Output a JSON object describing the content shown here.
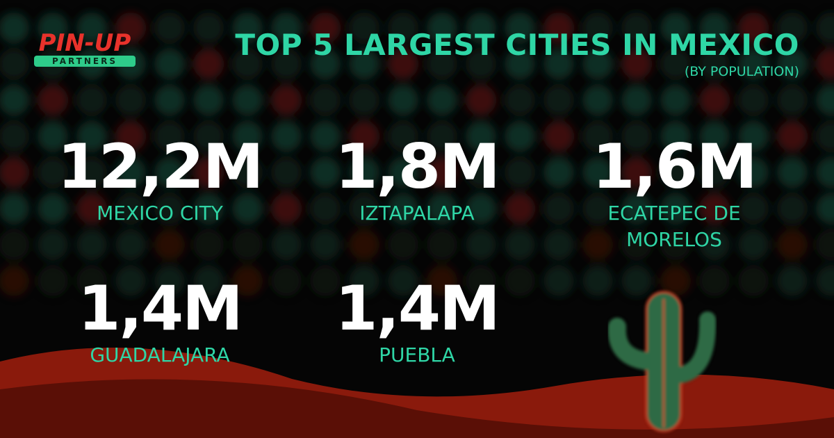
{
  "logo": {
    "name": "PIN-UP",
    "tagline": "PARTNERS"
  },
  "header": {
    "title": "TOP 5 LARGEST CITIES IN MEXICO",
    "subtitle": "(BY POPULATION)"
  },
  "items": [
    {
      "value": "12,2M",
      "city": "MEXICO CITY"
    },
    {
      "value": "1,8M",
      "city": "IZTAPALAPA"
    },
    {
      "value": "1,6M",
      "city": "ECATEPEC DE MORELOS"
    },
    {
      "value": "1,4M",
      "city": "GUADALAJARA"
    },
    {
      "value": "1,4M",
      "city": "PUEBLA"
    }
  ]
}
